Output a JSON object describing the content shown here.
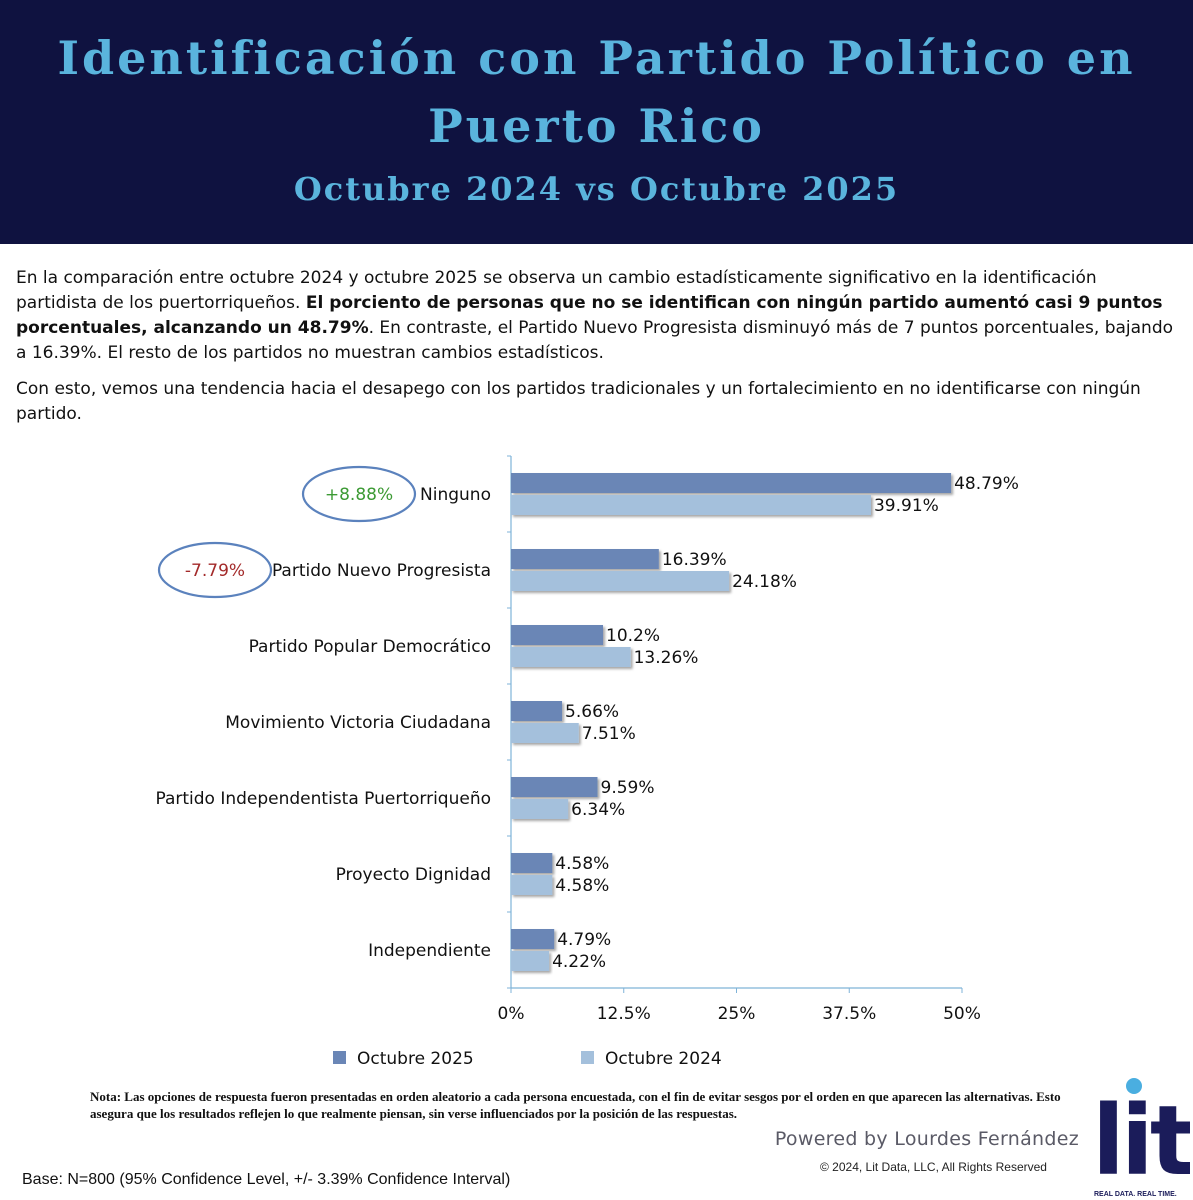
{
  "header": {
    "title_line1": "Identificación con Partido Político en",
    "title_line2": "Puerto Rico",
    "subtitle": "Octubre 2024 vs Octubre 2025"
  },
  "intro": {
    "p1_a": "En la comparación entre octubre 2024 y octubre 2025 se observa un cambio estadísticamente significativo en la identificación partidista de los puertorriqueños. ",
    "p1_bold": "El porciento de personas que no se identifican con ningún partido aumentó casi 9 puntos porcentuales, alcanzando un 48.79%",
    "p1_b": ". En contraste, el Partido Nuevo Progresista disminuyó más de 7 puntos porcentuales, bajando a 16.39%. El resto de los partidos no muestran cambios estadísticos.",
    "p2": "Con esto, vemos una tendencia hacia el desapego con los partidos tradicionales y un fortalecimiento en no identificarse con ningún partido."
  },
  "chart_data": {
    "type": "bar",
    "orientation": "horizontal",
    "categories": [
      "Ninguno",
      "Partido Nuevo Progresista",
      "Partido Popular Democrático",
      "Movimiento Victoria Ciudadana",
      "Partido Independentista Puertorriqueño",
      "Proyecto Dignidad",
      "Independiente"
    ],
    "series": [
      {
        "name": "Octubre 2025",
        "values": [
          48.79,
          16.39,
          10.2,
          5.66,
          9.59,
          4.58,
          4.79
        ],
        "labels": [
          "48.79%",
          "16.39%",
          "10.2%",
          "5.66%",
          "9.59%",
          "4.58%",
          "4.79%"
        ],
        "color": "#6a86b6"
      },
      {
        "name": "Octubre 2024",
        "values": [
          39.91,
          24.18,
          13.26,
          7.51,
          6.34,
          4.58,
          4.22
        ],
        "labels": [
          "39.91%",
          "24.18%",
          "13.26%",
          "7.51%",
          "6.34%",
          "4.58%",
          "4.22%"
        ],
        "color": "#a4c0dc"
      }
    ],
    "xlim": [
      0,
      50
    ],
    "xticks": [
      0,
      12.5,
      25,
      37.5,
      50
    ],
    "xtick_labels": [
      "0%",
      "12.5%",
      "25%",
      "37.5%",
      "50%"
    ],
    "legend_position": "bottom",
    "grid": false,
    "annotations": [
      {
        "category": "Ninguno",
        "text": "+8.88%",
        "color": "#3c9a34"
      },
      {
        "category": "Partido Nuevo Progresista",
        "text": "-7.79%",
        "color": "#a32a2a"
      }
    ]
  },
  "footer": {
    "note_label": "Nota",
    "note_text": ": Las opciones de respuesta fueron presentadas en orden aleatorio a cada persona encuestada, con el fin de evitar sesgos por el orden en que aparecen las alternativas. Esto asegura que los resultados reflejen lo que realmente piensan, sin verse influenciados por la posición de las respuestas.",
    "powered": "Powered by Lourdes Fernández",
    "copyright": "©  2024, Lit Data, LLC, All Rights Reserved",
    "base": "Base: N=800 (95% Confidence Level, +/- 3.39% Confidence Interval)"
  },
  "logo": {
    "text": "lit",
    "tagline": "REAL DATA. REAL TIME.",
    "color": "#1b1c5a",
    "dot_color": "#4aaee0"
  }
}
